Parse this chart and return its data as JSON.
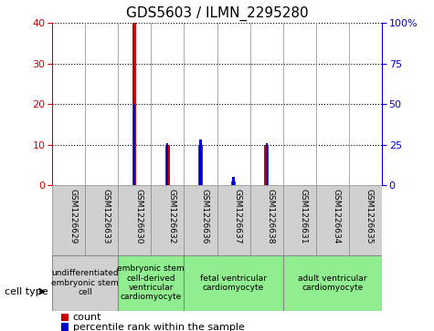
{
  "title": "GDS5603 / ILMN_2295280",
  "samples": [
    "GSM1226629",
    "GSM1226633",
    "GSM1226630",
    "GSM1226632",
    "GSM1226636",
    "GSM1226637",
    "GSM1226638",
    "GSM1226631",
    "GSM1226634",
    "GSM1226635"
  ],
  "counts": [
    0,
    0,
    40,
    10,
    10,
    1,
    10,
    0,
    0,
    0
  ],
  "percentiles": [
    0,
    0,
    50,
    26,
    28,
    5,
    26,
    0,
    0,
    0
  ],
  "ylim_left": [
    0,
    40
  ],
  "ylim_right": [
    0,
    100
  ],
  "yticks_left": [
    0,
    10,
    20,
    30,
    40
  ],
  "yticks_right": [
    0,
    25,
    50,
    75,
    100
  ],
  "ytick_labels_right": [
    "0",
    "25",
    "50",
    "75",
    "100%"
  ],
  "count_color": "#cc0000",
  "percentile_color": "#0000cc",
  "bg_color": "#ffffff",
  "cell_types": [
    {
      "label": "undifferentiated\nembryonic stem\ncell",
      "start": 0,
      "end": 2,
      "color": "#d0d0d0"
    },
    {
      "label": "embryonic stem\ncell-derived\nventricular\ncardiomyocyte",
      "start": 2,
      "end": 4,
      "color": "#90ee90"
    },
    {
      "label": "fetal ventricular\ncardiomyocyte",
      "start": 4,
      "end": 7,
      "color": "#90ee90"
    },
    {
      "label": "adult ventricular\ncardiomyocyte",
      "start": 7,
      "end": 10,
      "color": "#90ee90"
    }
  ],
  "legend_count_label": "count",
  "legend_pct_label": "percentile rank within the sample",
  "cell_type_label": "cell type",
  "tick_fontsize": 8,
  "title_fontsize": 11
}
